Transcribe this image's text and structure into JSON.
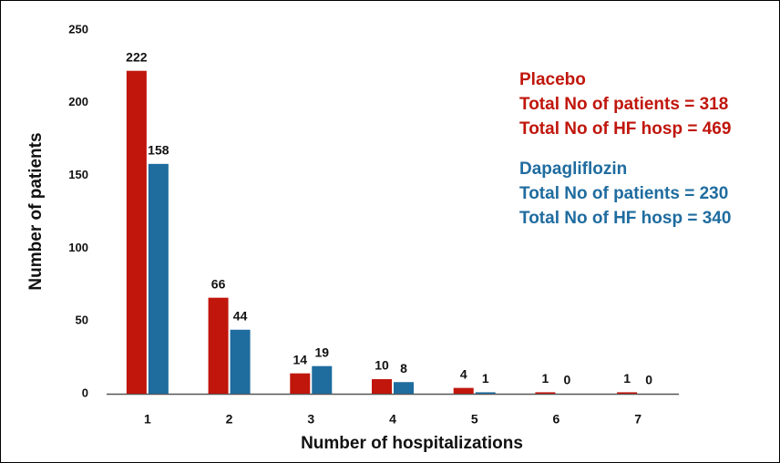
{
  "chart_data": {
    "type": "bar",
    "x_label": "Number of hospitalizations",
    "y_label": "Number of patients",
    "categories": [
      "1",
      "2",
      "3",
      "4",
      "5",
      "6",
      "7"
    ],
    "series": [
      {
        "name": "Placebo",
        "color": "#c0160c",
        "values": [
          222,
          66,
          14,
          10,
          4,
          1,
          1
        ]
      },
      {
        "name": "Dapagliflozin",
        "color": "#1f6c9f",
        "values": [
          158,
          44,
          19,
          8,
          1,
          0,
          0
        ]
      }
    ],
    "annotations": [
      [
        "Total No of patients = 318",
        "Total No of HF hosp = 469"
      ],
      [
        "Total No of patients = 230",
        "Total No of HF hosp = 340"
      ]
    ],
    "ylim": [
      0,
      250
    ],
    "yticks": [
      0,
      50,
      100,
      150,
      200,
      250
    ],
    "grid": false
  }
}
